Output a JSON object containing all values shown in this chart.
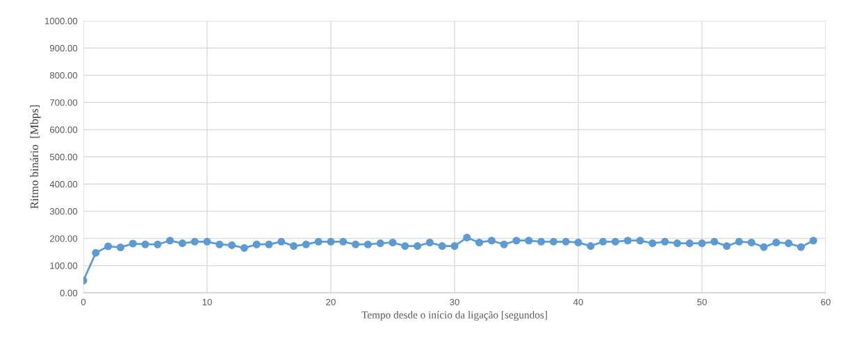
{
  "chart_data": {
    "type": "line",
    "xlabel": "Tempo desde o início da ligação [segundos]",
    "ylabel": "Ritmo binário  [Mbps]",
    "x": [
      0,
      1,
      2,
      3,
      4,
      5,
      6,
      7,
      8,
      9,
      10,
      11,
      12,
      13,
      14,
      15,
      16,
      17,
      18,
      19,
      20,
      21,
      22,
      23,
      24,
      25,
      26,
      27,
      28,
      29,
      30,
      31,
      32,
      33,
      34,
      35,
      36,
      37,
      38,
      39,
      40,
      41,
      42,
      43,
      44,
      45,
      46,
      47,
      48,
      49,
      50,
      51,
      52,
      53,
      54,
      55,
      56,
      57,
      58,
      59
    ],
    "series": [
      {
        "color": "#5b9bd5",
        "values": [
          45,
          147,
          171,
          167,
          181,
          178,
          178,
          192,
          182,
          188,
          188,
          178,
          175,
          165,
          178,
          178,
          188,
          172,
          178,
          188,
          188,
          188,
          178,
          178,
          182,
          185,
          172,
          172,
          185,
          172,
          172,
          203,
          185,
          192,
          178,
          192,
          192,
          188,
          188,
          188,
          185,
          172,
          188,
          188,
          192,
          192,
          182,
          188,
          182,
          182,
          182,
          188,
          172,
          188,
          185,
          168,
          185,
          182,
          168,
          192
        ]
      }
    ],
    "xlim": [
      0,
      60
    ],
    "xticks": [
      0,
      10,
      20,
      30,
      40,
      50,
      60
    ],
    "ylim": [
      0,
      1000
    ],
    "yticks": [
      {
        "value": 0,
        "label": "0.00"
      },
      {
        "value": 100,
        "label": "100.00"
      },
      {
        "value": 200,
        "label": "200.00"
      },
      {
        "value": 300,
        "label": "300.00"
      },
      {
        "value": 400,
        "label": "400.00"
      },
      {
        "value": 500,
        "label": "500.00"
      },
      {
        "value": 600,
        "label": "600.00"
      },
      {
        "value": 700,
        "label": "700.00"
      },
      {
        "value": 800,
        "label": "800.00"
      },
      {
        "value": 900,
        "label": "900.00"
      },
      {
        "value": 1000,
        "label": "1000.00"
      }
    ],
    "grid": true,
    "marker": "circle",
    "line_style": "solid"
  }
}
